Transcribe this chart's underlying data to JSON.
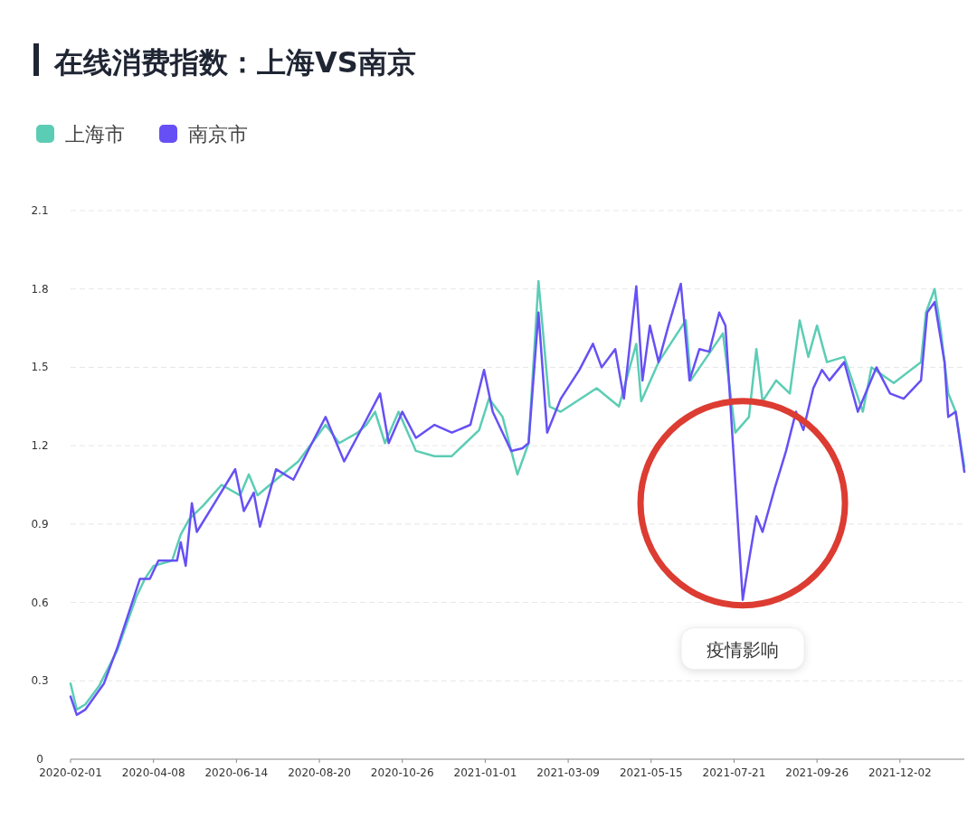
{
  "chart_data": {
    "type": "line",
    "title": "在线消费指数：上海VS南京",
    "legend": "top left",
    "grid": "y",
    "marker": "none",
    "line_style": "solid",
    "xlim": [
      "2020-02-01",
      "2022-01-23"
    ],
    "ylim": [
      0,
      2.1
    ],
    "yticks": [
      0,
      0.3,
      0.6,
      0.9,
      1.2,
      1.5,
      1.8,
      2.1
    ],
    "xticks": [
      "2020-02-01",
      "2020-04-08",
      "2020-06-14",
      "2020-08-20",
      "2020-10-26",
      "2021-01-01",
      "2021-03-09",
      "2021-05-15",
      "2021-07-21",
      "2021-09-26",
      "2021-12-02"
    ],
    "annotations": [
      {
        "text": "疫情影响",
        "x": "2021-07-28",
        "y": 0.61
      }
    ],
    "series": [
      {
        "name": "上海市",
        "color": "#5ccdb5",
        "x": [
          "2020-02-01",
          "2020-02-06",
          "2020-02-13",
          "2020-02-24",
          "2020-03-10",
          "2020-03-25",
          "2020-04-01",
          "2020-04-08",
          "2020-04-23",
          "2020-04-30",
          "2020-05-07",
          "2020-05-18",
          "2020-06-02",
          "2020-06-17",
          "2020-06-24",
          "2020-07-01",
          "2020-07-16",
          "2020-08-03",
          "2020-08-14",
          "2020-08-25",
          "2020-09-05",
          "2020-09-20",
          "2020-09-27",
          "2020-10-04",
          "2020-10-12",
          "2020-10-23",
          "2020-11-06",
          "2020-11-21",
          "2020-12-05",
          "2020-12-16",
          "2020-12-27",
          "2021-01-04",
          "2021-01-15",
          "2021-01-22",
          "2021-01-27",
          "2021-02-05",
          "2021-02-13",
          "2021-02-22",
          "2021-03-03",
          "2021-04-01",
          "2021-04-19",
          "2021-05-03",
          "2021-05-07",
          "2021-05-21",
          "2021-06-12",
          "2021-06-16",
          "2021-07-12",
          "2021-07-22",
          "2021-08-02",
          "2021-08-08",
          "2021-08-13",
          "2021-08-24",
          "2021-09-04",
          "2021-09-12",
          "2021-09-19",
          "2021-09-26",
          "2021-10-04",
          "2021-10-18",
          "2021-11-02",
          "2021-11-09",
          "2021-11-27",
          "2021-12-19",
          "2021-12-23",
          "2021-12-30",
          "2022-01-04",
          "2022-01-10",
          "2022-01-16",
          "2022-01-23"
        ],
        "values": [
          0.29,
          0.19,
          0.21,
          0.28,
          0.42,
          0.62,
          0.69,
          0.74,
          0.76,
          0.86,
          0.92,
          0.97,
          1.05,
          1.01,
          1.09,
          1.01,
          1.07,
          1.14,
          1.21,
          1.28,
          1.21,
          1.25,
          1.28,
          1.33,
          1.21,
          1.33,
          1.18,
          1.16,
          1.16,
          1.21,
          1.26,
          1.38,
          1.31,
          1.18,
          1.09,
          1.21,
          1.83,
          1.35,
          1.33,
          1.42,
          1.35,
          1.59,
          1.37,
          1.52,
          1.68,
          1.45,
          1.63,
          1.25,
          1.31,
          1.57,
          1.37,
          1.45,
          1.4,
          1.68,
          1.54,
          1.66,
          1.52,
          1.54,
          1.33,
          1.5,
          1.44,
          1.52,
          1.71,
          1.8,
          1.64,
          1.4,
          1.33,
          1.12
        ]
      },
      {
        "name": "南京市",
        "color": "#6650f5",
        "x": [
          "2020-02-01",
          "2020-02-06",
          "2020-02-13",
          "2020-02-28",
          "2020-03-10",
          "2020-03-28",
          "2020-04-05",
          "2020-04-12",
          "2020-04-27",
          "2020-04-30",
          "2020-05-04",
          "2020-05-09",
          "2020-05-13",
          "2020-05-26",
          "2020-06-13",
          "2020-06-20",
          "2020-06-28",
          "2020-07-03",
          "2020-07-16",
          "2020-07-30",
          "2020-08-14",
          "2020-08-25",
          "2020-09-09",
          "2020-09-27",
          "2020-10-08",
          "2020-10-15",
          "2020-10-26",
          "2020-11-06",
          "2020-11-21",
          "2020-12-05",
          "2020-12-20",
          "2020-12-31",
          "2021-01-07",
          "2021-01-15",
          "2021-01-22",
          "2021-01-31",
          "2021-02-05",
          "2021-02-13",
          "2021-02-20",
          "2021-03-03",
          "2021-03-18",
          "2021-03-29",
          "2021-04-05",
          "2021-04-16",
          "2021-04-23",
          "2021-05-03",
          "2021-05-08",
          "2021-05-14",
          "2021-05-21",
          "2021-05-29",
          "2021-06-08",
          "2021-06-15",
          "2021-06-23",
          "2021-07-01",
          "2021-07-09",
          "2021-07-14",
          "2021-07-28",
          "2021-08-02",
          "2021-08-08",
          "2021-08-13",
          "2021-08-23",
          "2021-09-01",
          "2021-09-09",
          "2021-09-15",
          "2021-09-23",
          "2021-09-30",
          "2021-10-06",
          "2021-10-18",
          "2021-10-29",
          "2021-11-13",
          "2021-11-24",
          "2021-12-05",
          "2021-12-19",
          "2021-12-24",
          "2021-12-30",
          "2022-01-07",
          "2022-01-10",
          "2022-01-16",
          "2022-01-23"
        ],
        "values": [
          0.24,
          0.17,
          0.19,
          0.29,
          0.43,
          0.69,
          0.69,
          0.76,
          0.76,
          0.83,
          0.74,
          0.98,
          0.87,
          0.97,
          1.11,
          0.95,
          1.02,
          0.89,
          1.11,
          1.07,
          1.21,
          1.31,
          1.14,
          1.3,
          1.4,
          1.21,
          1.33,
          1.23,
          1.28,
          1.25,
          1.28,
          1.49,
          1.33,
          1.25,
          1.18,
          1.19,
          1.21,
          1.71,
          1.25,
          1.38,
          1.49,
          1.59,
          1.5,
          1.57,
          1.38,
          1.81,
          1.45,
          1.66,
          1.52,
          1.66,
          1.82,
          1.45,
          1.57,
          1.56,
          1.71,
          1.66,
          0.61,
          0.76,
          0.93,
          0.87,
          1.04,
          1.18,
          1.33,
          1.26,
          1.42,
          1.49,
          1.45,
          1.52,
          1.33,
          1.5,
          1.4,
          1.38,
          1.45,
          1.71,
          1.75,
          1.52,
          1.31,
          1.33,
          1.1
        ]
      }
    ]
  }
}
